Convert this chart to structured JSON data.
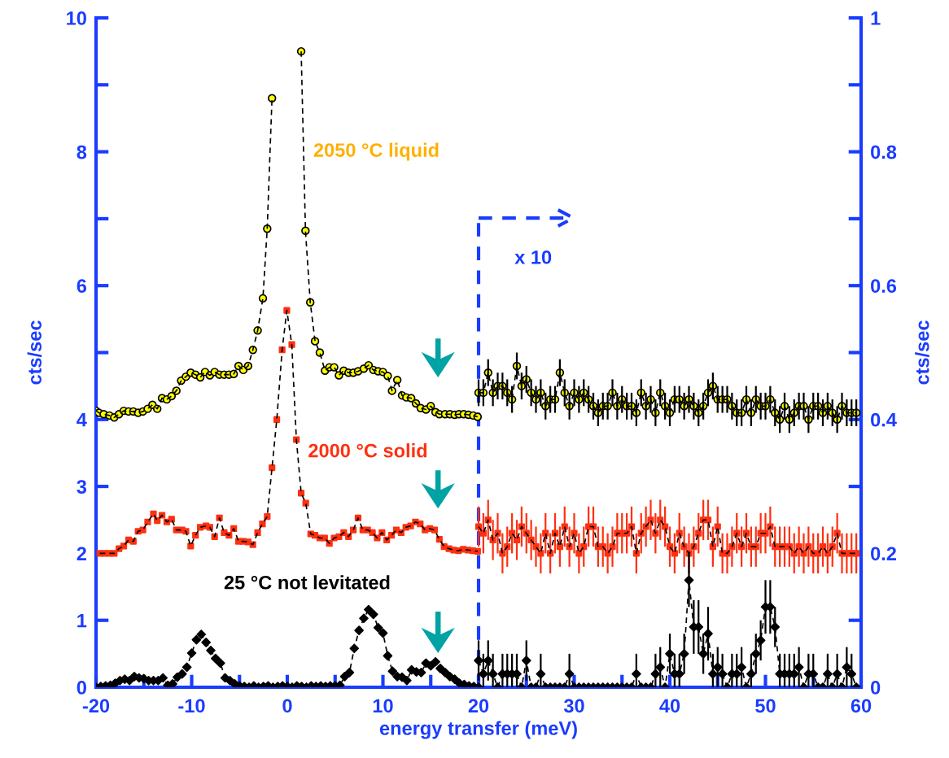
{
  "chart_data": {
    "type": "line",
    "xlabel": "energy transfer (meV)",
    "ylabel": "cts/sec",
    "y2label": "cts/sec",
    "xlim": [
      -20,
      60
    ],
    "xticks": [
      -20,
      {
        "value": -15,
        "label": null
      },
      -10,
      {
        "value": -5,
        "label": null
      },
      0,
      {
        "value": 5,
        "label": null
      },
      10,
      {
        "value": 15,
        "label": null
      },
      20,
      {
        "value": 25,
        "label": null
      },
      30,
      {
        "value": 35,
        "label": null
      },
      40,
      {
        "value": 45,
        "label": null
      },
      50,
      {
        "value": 55,
        "label": null
      },
      60
    ],
    "ylim": [
      0,
      10
    ],
    "yticks": [
      0,
      1,
      2,
      3,
      4,
      {
        "value": 5,
        "label": null
      },
      6,
      {
        "value": 7,
        "label": null
      },
      8,
      {
        "value": 9,
        "label": null
      },
      10
    ],
    "y2lim": [
      0,
      1
    ],
    "y2ticks": [
      0,
      {
        "value": 0.1,
        "label": null
      },
      0.2,
      {
        "value": 0.3,
        "label": null
      },
      0.4,
      {
        "value": 0.5,
        "label": null
      },
      0.6,
      {
        "value": 0.7,
        "label": null
      },
      0.8,
      {
        "value": 0.9,
        "label": null
      },
      1
    ],
    "grid": false,
    "legend": false,
    "line_style": "dashed",
    "annotations": [
      "2050 °C liquid",
      "2000 °C solid",
      "25 °C not levitated"
    ],
    "ref_lines": [
      {
        "axis": "x",
        "value": 20,
        "label": "x 10",
        "color": "#1a3cff",
        "line_style": "dashed"
      }
    ],
    "series": [
      {
        "color": "#ffff00",
        "marker": "circle",
        "x": [
          -20.0,
          -19.7,
          -19.2,
          -18.6,
          -18.1,
          -17.6,
          -17.1,
          -16.6,
          -16.1,
          -15.6,
          -15.1,
          -14.6,
          -14.1,
          -13.6,
          -13.1,
          -12.6,
          -12.1,
          -11.6,
          -11.1,
          -10.6,
          -10.1,
          -9.6,
          -9.1,
          -8.6,
          -8.1,
          -7.6,
          -7.1,
          -6.6,
          -6.1,
          -5.6,
          -5.1,
          -4.6,
          -4.1,
          -3.6,
          -3.1,
          -2.55,
          -2.1,
          -1.6,
          -0.1,
          1.45,
          1.9,
          2.4,
          2.9,
          3.4,
          3.94,
          4.4,
          4.9,
          5.4,
          5.9,
          6.4,
          6.9,
          7.4,
          8.0,
          8.5,
          9.0,
          9.5,
          10.0,
          10.5,
          10.95,
          11.5,
          12.0,
          12.45,
          12.95,
          13.45,
          13.95,
          14.5,
          15.0,
          15.5,
          15.9,
          16.5,
          17.0,
          17.5,
          17.95,
          18.45,
          18.95,
          19.45,
          19.9
        ],
        "values": [
          4.13,
          4.1,
          4.08,
          4.06,
          4.03,
          4.08,
          4.13,
          4.12,
          4.12,
          4.1,
          4.12,
          4.16,
          4.22,
          4.16,
          4.32,
          4.3,
          4.35,
          4.43,
          4.58,
          4.64,
          4.7,
          4.67,
          4.63,
          4.71,
          4.66,
          4.71,
          4.67,
          4.67,
          4.67,
          4.68,
          4.8,
          4.74,
          4.8,
          5.04,
          5.33,
          5.81,
          6.85,
          8.8,
          null,
          9.5,
          6.82,
          5.75,
          5.17,
          5.0,
          4.73,
          4.78,
          4.78,
          4.66,
          4.73,
          4.7,
          4.7,
          4.72,
          4.76,
          4.81,
          4.74,
          4.72,
          4.71,
          4.65,
          4.43,
          4.59,
          4.36,
          4.33,
          4.32,
          4.24,
          4.17,
          4.15,
          4.2,
          4.11,
          4.08,
          4.08,
          4.08,
          4.07,
          4.08,
          4.08,
          4.07,
          4.06,
          4.04
        ]
      },
      {
        "color": "#ffff00",
        "marker": "circle",
        "axis": "y2",
        "x": [
          20,
          20.5,
          21,
          21.5,
          22,
          22.5,
          23,
          23.5,
          24,
          24.5,
          25,
          25.5,
          26,
          26.5,
          27,
          27.5,
          28,
          28.5,
          29,
          29.5,
          30,
          30.5,
          31,
          31.5,
          32,
          32.5,
          33,
          33.5,
          34,
          34.5,
          35,
          35.5,
          36,
          36.5,
          37,
          37.5,
          38,
          38.5,
          39,
          39.5,
          40,
          40.5,
          41,
          41.5,
          42,
          42.5,
          43,
          43.5,
          44,
          44.5,
          45,
          45.5,
          46,
          46.5,
          47,
          47.5,
          48,
          48.5,
          49,
          49.5,
          50,
          50.5,
          51,
          51.5,
          52,
          52.5,
          53,
          53.5,
          54,
          54.5,
          55,
          55.5,
          56,
          56.5,
          57,
          57.5,
          58,
          58.5,
          59,
          59.5
        ],
        "values": [
          0.44,
          0.44,
          0.47,
          0.44,
          0.45,
          0.45,
          0.44,
          0.43,
          0.48,
          0.45,
          0.46,
          0.44,
          0.43,
          0.44,
          0.42,
          0.43,
          0.43,
          0.47,
          0.44,
          0.42,
          0.44,
          0.43,
          0.44,
          0.43,
          0.42,
          0.41,
          0.42,
          0.42,
          0.44,
          0.42,
          0.43,
          0.42,
          0.42,
          0.41,
          0.44,
          0.42,
          0.43,
          0.41,
          0.44,
          0.42,
          0.41,
          0.43,
          0.43,
          0.42,
          0.43,
          0.42,
          0.41,
          0.42,
          0.44,
          0.45,
          0.43,
          0.43,
          0.43,
          0.42,
          0.41,
          0.41,
          0.43,
          0.41,
          0.43,
          0.42,
          0.42,
          0.43,
          0.41,
          0.4,
          0.42,
          0.4,
          0.41,
          0.42,
          0.42,
          0.4,
          0.42,
          0.42,
          0.41,
          0.42,
          0.41,
          0.4,
          0.42,
          0.41,
          0.41,
          0.41
        ],
        "errors": [
          0.02,
          0.02,
          0.02,
          0.02,
          0.02,
          0.02,
          0.02,
          0.02,
          0.02,
          0.02,
          0.02,
          0.02,
          0.02,
          0.02,
          0.02,
          0.02,
          0.02,
          0.02,
          0.02,
          0.02,
          0.02,
          0.02,
          0.02,
          0.02,
          0.02,
          0.02,
          0.02,
          0.02,
          0.02,
          0.02,
          0.02,
          0.02,
          0.02,
          0.02,
          0.02,
          0.02,
          0.02,
          0.02,
          0.02,
          0.02,
          0.02,
          0.02,
          0.02,
          0.02,
          0.02,
          0.02,
          0.02,
          0.02,
          0.02,
          0.02,
          0.02,
          0.02,
          0.02,
          0.02,
          0.02,
          0.02,
          0.02,
          0.02,
          0.02,
          0.02,
          0.02,
          0.02,
          0.02,
          0.02,
          0.02,
          0.02,
          0.02,
          0.02,
          0.02,
          0.02,
          0.02,
          0.02,
          0.02,
          0.02,
          0.02,
          0.02,
          0.02,
          0.02,
          0.02,
          0.02
        ]
      },
      {
        "color": "#ff3010",
        "marker": "square",
        "x": [
          -19.6,
          -19.1,
          -18.6,
          -18.1,
          -17.6,
          -17.1,
          -16.6,
          -16.1,
          -15.6,
          -15.1,
          -14.6,
          -14.0,
          -13.6,
          -13.1,
          -12.6,
          -12.1,
          -11.6,
          -11.0,
          -10.6,
          -10.1,
          -9.6,
          -9.1,
          -8.5,
          -8.1,
          -7.6,
          -7.1,
          -6.6,
          -6.1,
          -5.6,
          -5.1,
          -4.6,
          -4.1,
          -3.6,
          -3.1,
          -2.6,
          -2.1,
          -1.6,
          -1.1,
          -0.54,
          -0.05,
          0.47,
          0.95,
          1.45,
          1.93,
          2.45,
          2.9,
          3.4,
          3.9,
          4.4,
          4.9,
          5.4,
          5.9,
          6.4,
          6.9,
          7.4,
          7.9,
          8.4,
          8.9,
          9.4,
          9.9,
          10.4,
          10.9,
          11.4,
          11.9,
          12.4,
          12.9,
          13.4,
          13.9,
          14.4,
          14.9,
          15.4,
          15.9,
          16.4,
          16.9,
          17.4,
          17.9,
          18.4,
          18.9,
          19.4,
          19.9
        ],
        "values": [
          2.0,
          2.0,
          2.0,
          2.0,
          2.07,
          2.11,
          2.2,
          2.18,
          2.33,
          2.35,
          2.47,
          2.59,
          2.49,
          2.57,
          2.47,
          2.51,
          2.35,
          2.35,
          2.33,
          2.11,
          2.27,
          2.39,
          2.41,
          2.39,
          2.25,
          2.53,
          2.31,
          2.27,
          2.37,
          2.18,
          2.18,
          2.17,
          2.13,
          2.31,
          2.44,
          2.55,
          3.28,
          4.0,
          5.04,
          5.63,
          5.12,
          3.7,
          2.9,
          2.75,
          2.29,
          2.27,
          2.23,
          2.23,
          2.15,
          2.23,
          2.25,
          2.31,
          2.25,
          2.35,
          2.53,
          2.35,
          2.35,
          2.31,
          2.23,
          2.31,
          2.2,
          2.27,
          2.35,
          2.31,
          2.39,
          2.41,
          2.47,
          2.44,
          2.35,
          2.37,
          2.35,
          2.21,
          2.1,
          2.07,
          2.05,
          2.04,
          2.06,
          2.05,
          2.04,
          2.03
        ]
      },
      {
        "color": "#ff3010",
        "marker": "square",
        "axis": "y2",
        "x": [
          20,
          20.5,
          21,
          21.5,
          22,
          22.5,
          23,
          23.5,
          24,
          24.5,
          25,
          25.5,
          26,
          26.5,
          27,
          27.5,
          28,
          28.5,
          29,
          29.5,
          30,
          30.5,
          31,
          31.5,
          32,
          32.5,
          33,
          33.5,
          34,
          34.5,
          35,
          35.5,
          36,
          36.5,
          37,
          37.5,
          38,
          38.5,
          39,
          39.5,
          40,
          40.5,
          41,
          41.5,
          42,
          42.5,
          43,
          43.5,
          44,
          44.5,
          45,
          45.5,
          46,
          46.5,
          47,
          47.5,
          48,
          48.5,
          49,
          49.5,
          50,
          50.5,
          51,
          51.5,
          52,
          52.5,
          53,
          53.5,
          54,
          54.5,
          55,
          55.5,
          56,
          56.5,
          57,
          57.5,
          58,
          58.5,
          59,
          59.5
        ],
        "values": [
          0.24,
          0.23,
          0.25,
          0.22,
          0.23,
          0.2,
          0.21,
          0.23,
          0.22,
          0.24,
          0.23,
          0.22,
          0.21,
          0.2,
          0.23,
          0.2,
          0.23,
          0.21,
          0.24,
          0.21,
          0.23,
          0.2,
          0.21,
          0.24,
          0.24,
          0.21,
          0.21,
          0.2,
          0.21,
          0.23,
          0.23,
          0.23,
          0.24,
          0.2,
          0.23,
          0.24,
          0.25,
          0.23,
          0.25,
          0.24,
          0.21,
          0.2,
          0.23,
          0.21,
          0.2,
          0.21,
          0.23,
          0.25,
          0.25,
          0.21,
          0.24,
          0.2,
          0.2,
          0.21,
          0.23,
          0.21,
          0.23,
          0.21,
          0.21,
          0.23,
          0.23,
          0.24,
          0.21,
          0.21,
          0.21,
          0.21,
          0.2,
          0.21,
          0.2,
          0.21,
          0.2,
          0.2,
          0.21,
          0.2,
          0.21,
          0.23,
          0.2,
          0.2,
          0.2,
          0.2
        ],
        "errors": [
          0.03,
          0.03,
          0.03,
          0.03,
          0.03,
          0.03,
          0.03,
          0.03,
          0.03,
          0.03,
          0.03,
          0.03,
          0.03,
          0.03,
          0.03,
          0.03,
          0.03,
          0.03,
          0.03,
          0.03,
          0.03,
          0.03,
          0.03,
          0.03,
          0.03,
          0.03,
          0.03,
          0.03,
          0.03,
          0.03,
          0.03,
          0.03,
          0.03,
          0.03,
          0.03,
          0.03,
          0.03,
          0.03,
          0.03,
          0.03,
          0.03,
          0.03,
          0.03,
          0.03,
          0.03,
          0.03,
          0.03,
          0.03,
          0.03,
          0.03,
          0.03,
          0.03,
          0.03,
          0.03,
          0.03,
          0.03,
          0.03,
          0.03,
          0.03,
          0.03,
          0.03,
          0.03,
          0.03,
          0.03,
          0.03,
          0.03,
          0.03,
          0.03,
          0.03,
          0.03,
          0.03,
          0.03,
          0.03,
          0.03,
          0.03,
          0.03,
          0.03,
          0.03,
          0.03,
          0.03
        ]
      },
      {
        "color": "#000000",
        "marker": "diamond",
        "x": [
          -20,
          -19.5,
          -19,
          -18.5,
          -18,
          -17.5,
          -17,
          -16.5,
          -16,
          -15.5,
          -15,
          -14.5,
          -14,
          -13.5,
          -13,
          -12.5,
          -12,
          -11.5,
          -11,
          -10.5,
          -10,
          -9.5,
          -9,
          -8.5,
          -8,
          -7.5,
          -7,
          -6.5,
          -6,
          -5.5,
          -5,
          -4.5,
          -4,
          -3.5,
          -3,
          -2.5,
          -2,
          -1.5,
          -1,
          -0.5,
          0,
          0.5,
          1,
          1.5,
          2,
          2.5,
          3,
          3.5,
          4,
          4.5,
          5,
          5.5,
          6,
          6.5,
          7,
          7.5,
          8,
          8.5,
          9,
          9.5,
          10,
          10.5,
          11,
          11.5,
          12,
          12.5,
          13,
          13.5,
          14,
          14.5,
          15,
          15.5,
          16,
          16.5,
          17,
          17.5,
          18,
          18.5,
          19,
          19.5,
          20
        ],
        "values": [
          0,
          0.01,
          0.02,
          0.03,
          0.06,
          0.1,
          0.12,
          0.1,
          0.16,
          0.14,
          0.13,
          0.1,
          0.1,
          0.1,
          0.14,
          0.03,
          0.05,
          0.15,
          0.2,
          0.3,
          0.51,
          0.71,
          0.79,
          0.67,
          0.55,
          0.43,
          0.36,
          0.14,
          0.1,
          0.05,
          0.02,
          0.01,
          0,
          0.02,
          0,
          0.01,
          0.02,
          0,
          0.01,
          0.02,
          0.01,
          0,
          0.02,
          0.01,
          0,
          0.02,
          0.01,
          0.02,
          0.01,
          0.02,
          0.02,
          0.03,
          0.16,
          0.22,
          0.58,
          0.85,
          1.03,
          1.16,
          1.09,
          0.89,
          0.81,
          0.47,
          0.24,
          0.16,
          0.15,
          0.1,
          0.26,
          0.23,
          0.22,
          0.36,
          0.32,
          0.38,
          0.28,
          0.22,
          0.16,
          0.12,
          0.06,
          0.04,
          0.02,
          0.01,
          0
        ]
      },
      {
        "color": "#000000",
        "marker": "diamond",
        "axis": "y2",
        "x": [
          20,
          20.5,
          21,
          21.5,
          22,
          22.5,
          23,
          23.5,
          24,
          24.5,
          25,
          25.5,
          26,
          26.5,
          27,
          27.5,
          28,
          28.5,
          29,
          29.5,
          30,
          30.5,
          31,
          31.5,
          32,
          32.5,
          33,
          33.5,
          34,
          34.5,
          35,
          35.5,
          36,
          36.5,
          37,
          37.5,
          38,
          38.5,
          39,
          39.5,
          40,
          40.5,
          41,
          41.5,
          42,
          42.5,
          43,
          43.5,
          44,
          44.5,
          45,
          45.5,
          46,
          46.5,
          47,
          47.5,
          48,
          48.5,
          49,
          49.5,
          50,
          50.5,
          51,
          51.5,
          52,
          52.5,
          53,
          53.5,
          54,
          54.5,
          55,
          55.5,
          56,
          56.5,
          57,
          57.5,
          58,
          58.5,
          59,
          59.5
        ],
        "values": [
          0.04,
          0.02,
          0.04,
          0.02,
          0,
          0.02,
          0.02,
          0.02,
          0.02,
          0,
          0.04,
          0,
          0,
          0.02,
          0,
          0,
          0,
          0,
          0,
          0.02,
          0,
          0,
          0,
          0,
          0,
          0,
          0,
          0,
          0,
          0,
          0,
          0,
          0,
          0.02,
          0,
          0,
          0,
          0.02,
          0.03,
          0,
          0.05,
          0.02,
          0.02,
          0.05,
          0.16,
          0.09,
          0.09,
          0.05,
          0.08,
          0.02,
          0.03,
          0.02,
          0,
          0.02,
          0.02,
          0.03,
          0,
          0.02,
          0.05,
          0.07,
          0.12,
          0.12,
          0.09,
          0.02,
          0.02,
          0.02,
          0.02,
          0.03,
          0,
          0.02,
          0.02,
          0,
          0,
          0.02,
          0,
          0.02,
          0,
          0.03,
          0.02,
          0
        ],
        "errors": [
          0.03,
          0.03,
          0.03,
          0.03,
          null,
          0.03,
          0.03,
          0.03,
          0.03,
          null,
          0.03,
          null,
          null,
          0.03,
          null,
          null,
          null,
          null,
          null,
          0.03,
          null,
          null,
          null,
          null,
          null,
          null,
          null,
          null,
          null,
          null,
          null,
          null,
          null,
          0.03,
          null,
          null,
          null,
          0.03,
          0.03,
          null,
          0.03,
          0.03,
          0.03,
          0.03,
          0.04,
          0.04,
          0.04,
          0.03,
          0.04,
          0.03,
          0.03,
          0.03,
          null,
          0.03,
          0.03,
          0.03,
          null,
          0.03,
          0.03,
          0.03,
          0.04,
          0.04,
          0.03,
          0.03,
          0.03,
          0.03,
          0.03,
          0.03,
          null,
          0.03,
          0.03,
          null,
          null,
          0.03,
          null,
          0.03,
          null,
          0.03,
          0.03,
          null
        ]
      }
    ]
  }
}
